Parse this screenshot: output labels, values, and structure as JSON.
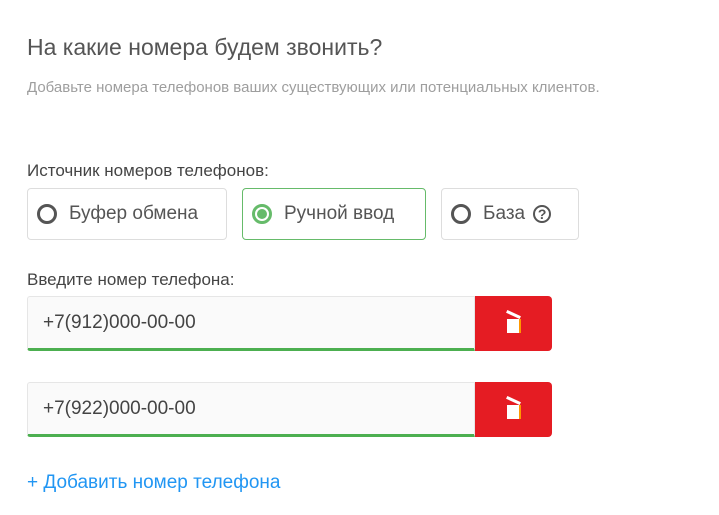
{
  "title": "На какие номера будем звонить?",
  "subtitle": "Добавьте номера телефонов ваших существующих или потенциальных клиентов.",
  "source": {
    "label": "Источник номеров телефонов:",
    "options": [
      {
        "label": "Буфер обмена",
        "selected": false
      },
      {
        "label": "Ручной ввод",
        "selected": true
      },
      {
        "label": "База",
        "selected": false,
        "icon": "help-icon"
      }
    ]
  },
  "phone_label": "Введите номер телефона:",
  "phones": [
    "+7(912)000-00-00",
    "+7(922)000-00-00"
  ],
  "add_link": "+ Добавить номер телефона",
  "colors": {
    "accent": "#66bb6a",
    "delete": "#e51c23",
    "link": "#2196f3"
  }
}
